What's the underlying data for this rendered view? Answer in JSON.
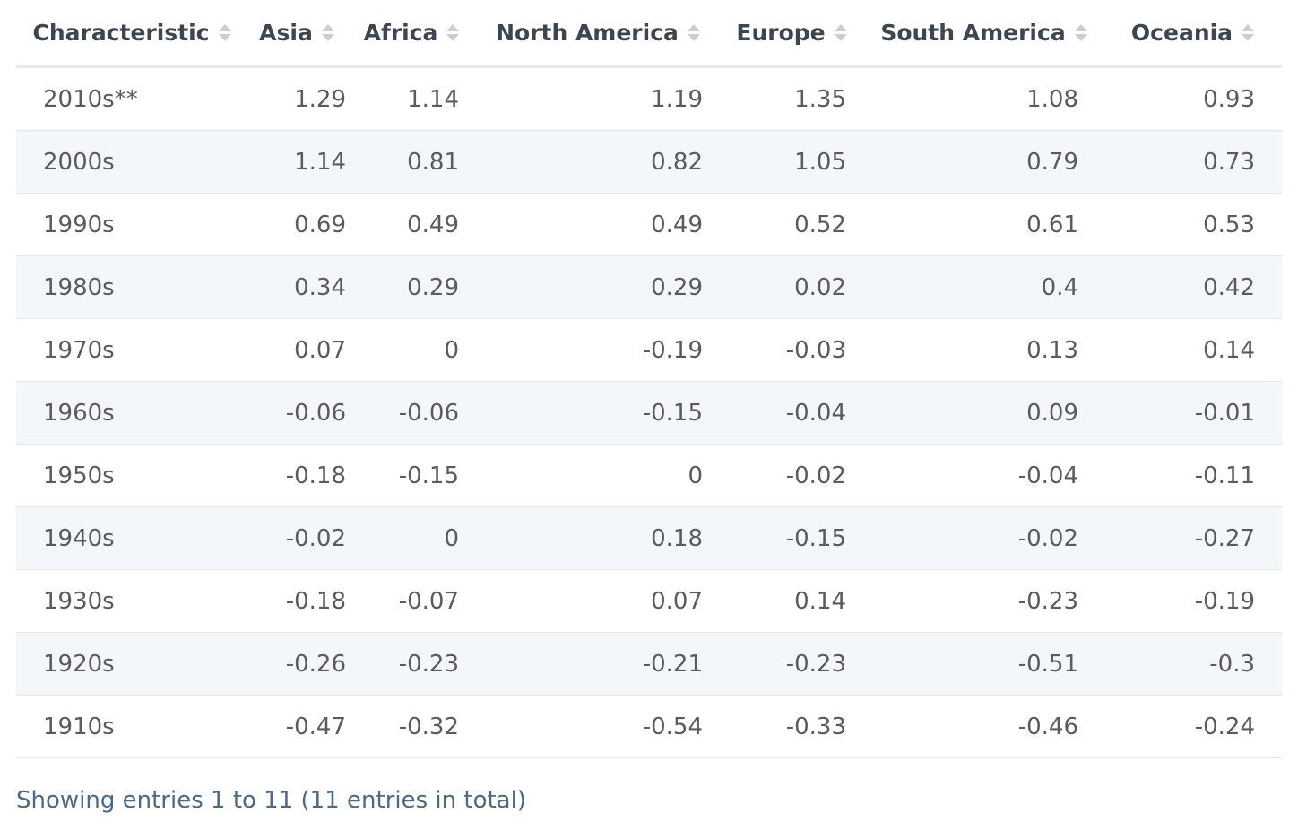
{
  "chart_data": {
    "type": "table",
    "columns": [
      "Characteristic",
      "Asia",
      "Africa",
      "North America",
      "Europe",
      "South America",
      "Oceania"
    ],
    "rows": [
      [
        "2010s**",
        "1.29",
        "1.14",
        "1.19",
        "1.35",
        "1.08",
        "0.93"
      ],
      [
        "2000s",
        "1.14",
        "0.81",
        "0.82",
        "1.05",
        "0.79",
        "0.73"
      ],
      [
        "1990s",
        "0.69",
        "0.49",
        "0.49",
        "0.52",
        "0.61",
        "0.53"
      ],
      [
        "1980s",
        "0.34",
        "0.29",
        "0.29",
        "0.02",
        "0.4",
        "0.42"
      ],
      [
        "1970s",
        "0.07",
        "0",
        "-0.19",
        "-0.03",
        "0.13",
        "0.14"
      ],
      [
        "1960s",
        "-0.06",
        "-0.06",
        "-0.15",
        "-0.04",
        "0.09",
        "-0.01"
      ],
      [
        "1950s",
        "-0.18",
        "-0.15",
        "0",
        "-0.02",
        "-0.04",
        "-0.11"
      ],
      [
        "1940s",
        "-0.02",
        "0",
        "0.18",
        "-0.15",
        "-0.02",
        "-0.27"
      ],
      [
        "1930s",
        "-0.18",
        "-0.07",
        "0.07",
        "0.14",
        "-0.23",
        "-0.19"
      ],
      [
        "1920s",
        "-0.26",
        "-0.23",
        "-0.21",
        "-0.23",
        "-0.51",
        "-0.3"
      ],
      [
        "1910s",
        "-0.47",
        "-0.32",
        "-0.54",
        "-0.33",
        "-0.46",
        "-0.24"
      ]
    ]
  },
  "footer": {
    "text": "Showing entries 1 to 11 (11 entries in total)"
  },
  "colors": {
    "header_text": "#3d4650",
    "cell_text": "#5b5b5b",
    "stripe": "#f4f7fa",
    "footer_text": "#4a6a87",
    "sort_icon": "#c9ced4"
  },
  "icons": {
    "sort": "sort-arrows-icon"
  }
}
